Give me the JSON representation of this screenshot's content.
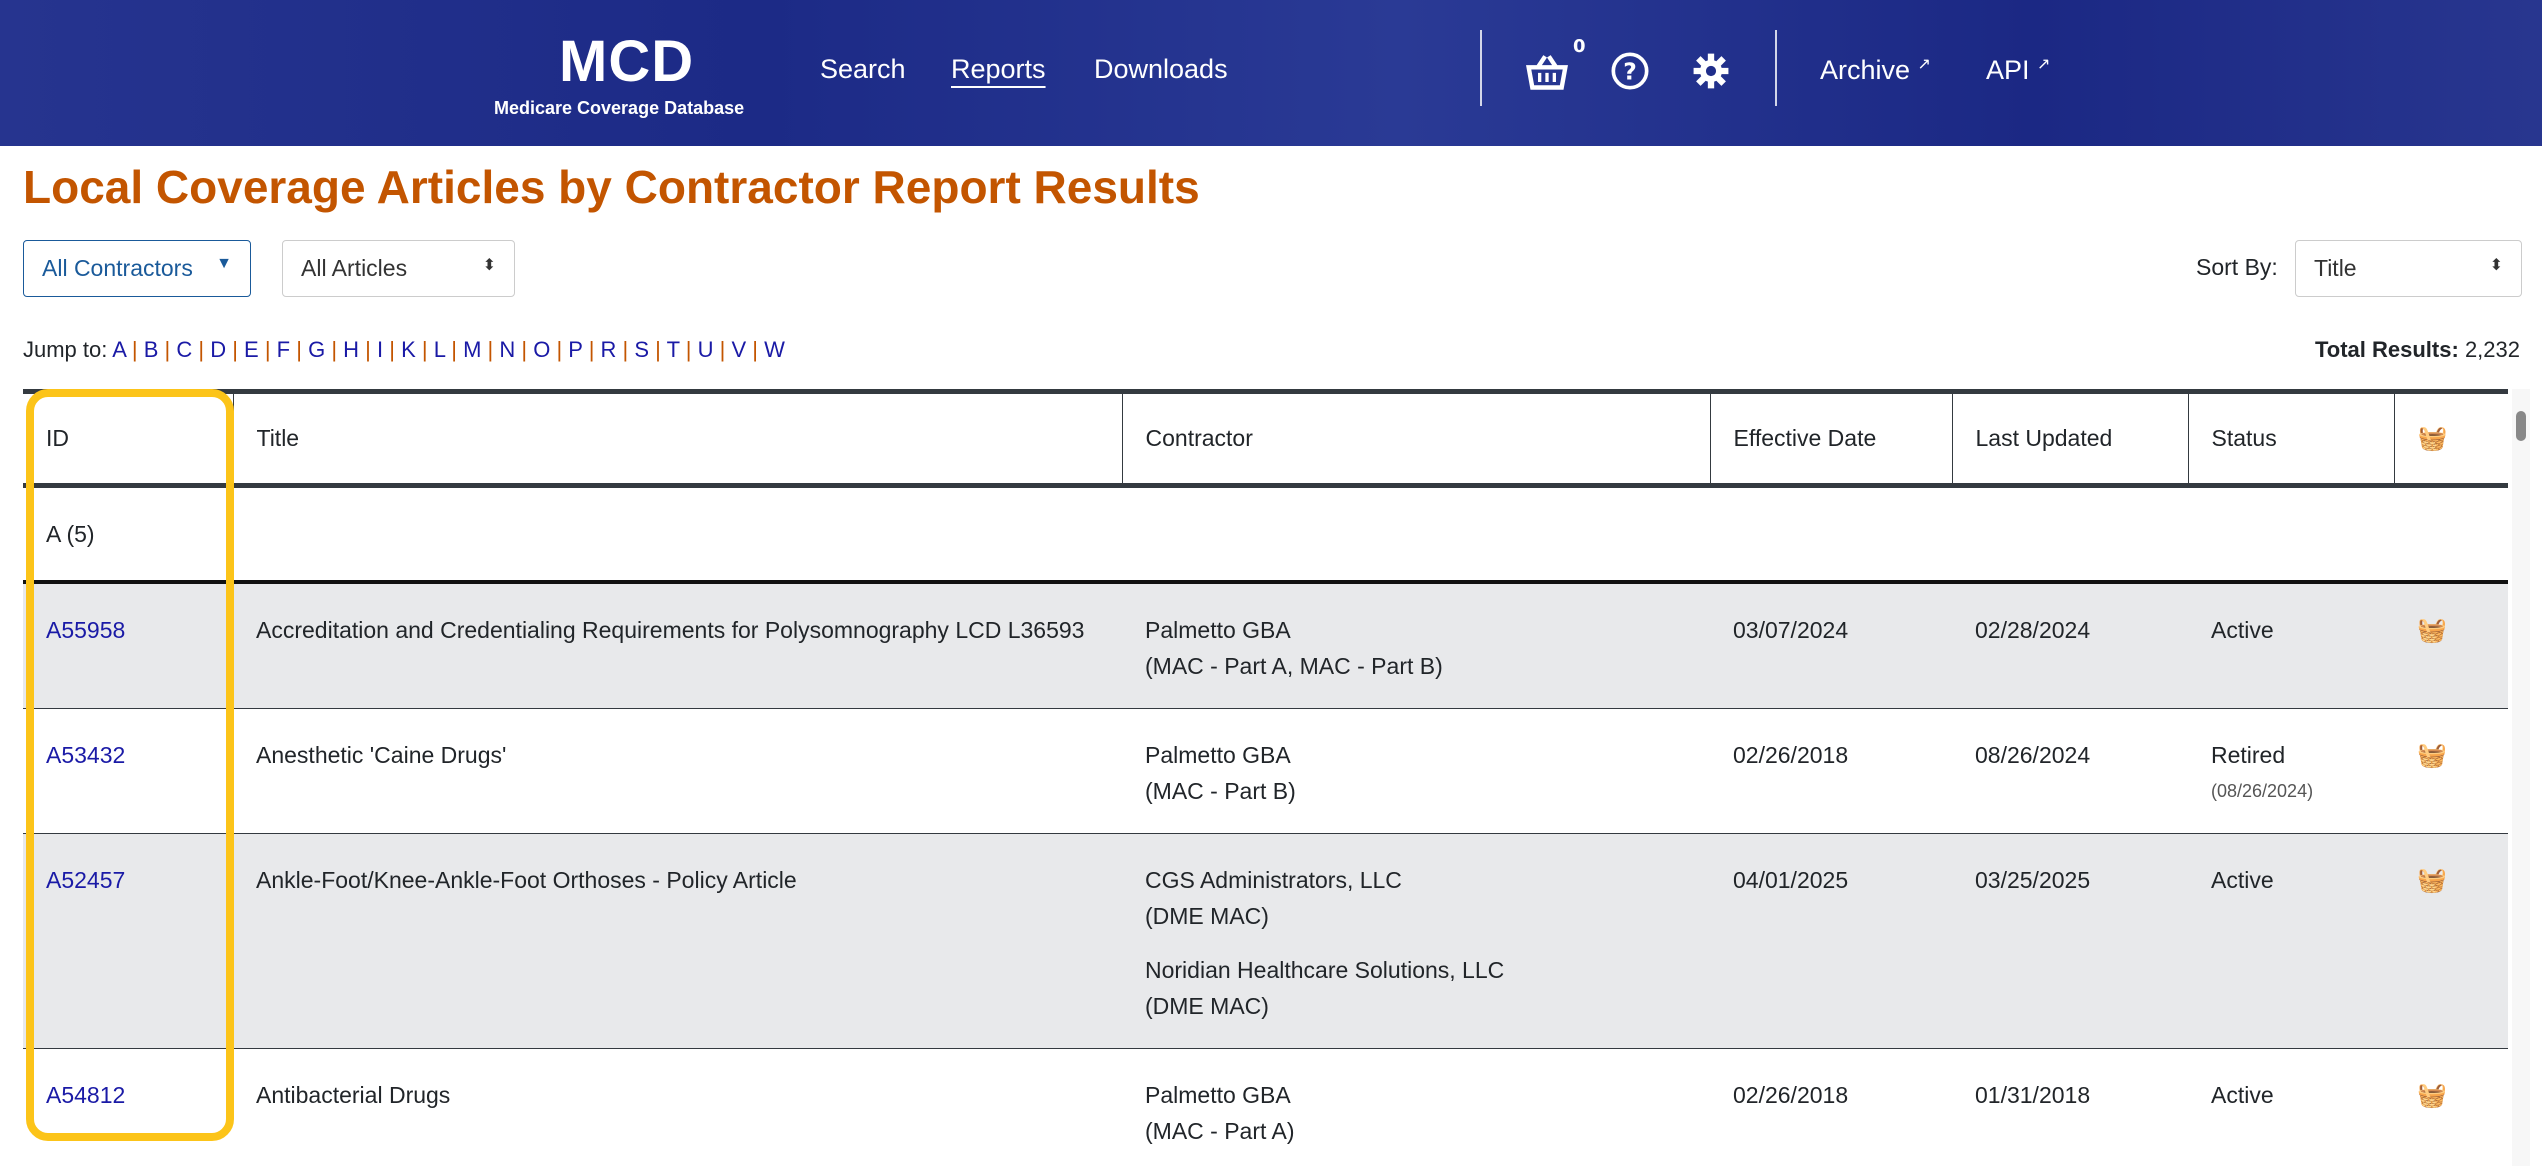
{
  "header": {
    "logo": "MCD",
    "logo_sub": "Medicare Coverage Database",
    "nav": [
      "Search",
      "Reports",
      "Downloads"
    ],
    "active_nav": "Reports",
    "cart_count": "0",
    "archive": "Archive",
    "api": "API"
  },
  "page_title": "Local Coverage Articles by Contractor Report Results",
  "filters": {
    "contractor": "All Contractors",
    "articles": "All Articles",
    "sort_label": "Sort By:",
    "sort_value": "Title"
  },
  "jump": {
    "label": "Jump to:",
    "letters": [
      "A",
      "B",
      "C",
      "D",
      "E",
      "F",
      "G",
      "H",
      "I",
      "K",
      "L",
      "M",
      "N",
      "O",
      "P",
      "R",
      "S",
      "T",
      "U",
      "V",
      "W"
    ]
  },
  "total": {
    "label": "Total Results:",
    "value": "2,232"
  },
  "table": {
    "headers": [
      "ID",
      "Title",
      "Contractor",
      "Effective Date",
      "Last Updated",
      "Status"
    ],
    "group": "A (5)",
    "rows": [
      {
        "id": "A55958",
        "title": "Accreditation and Credentialing Requirements for Polysomnography LCD L36593",
        "contractors": [
          {
            "name": "Palmetto GBA",
            "type": "(MAC - Part A, MAC - Part B)"
          }
        ],
        "effective": "03/07/2024",
        "updated": "02/28/2024",
        "status": "Active",
        "status_date": ""
      },
      {
        "id": "A53432",
        "title": "Anesthetic 'Caine Drugs'",
        "contractors": [
          {
            "name": "Palmetto GBA",
            "type": "(MAC - Part B)"
          }
        ],
        "effective": "02/26/2018",
        "updated": "08/26/2024",
        "status": "Retired",
        "status_date": "(08/26/2024)"
      },
      {
        "id": "A52457",
        "title": "Ankle-Foot/Knee-Ankle-Foot Orthoses - Policy Article",
        "contractors": [
          {
            "name": "CGS Administrators, LLC",
            "type": "(DME MAC)"
          },
          {
            "name": "Noridian Healthcare Solutions, LLC",
            "type": "(DME MAC)"
          }
        ],
        "effective": "04/01/2025",
        "updated": "03/25/2025",
        "status": "Active",
        "status_date": ""
      },
      {
        "id": "A54812",
        "title": "Antibacterial Drugs",
        "contractors": [
          {
            "name": "Palmetto GBA",
            "type": "(MAC - Part A)"
          }
        ],
        "effective": "02/26/2018",
        "updated": "01/31/2018",
        "status": "Active",
        "status_date": ""
      }
    ]
  },
  "colors": {
    "header_bg": "#1f2d8a",
    "title": "#c35500",
    "link": "#1a1aa6",
    "highlight": "#fcc419"
  }
}
